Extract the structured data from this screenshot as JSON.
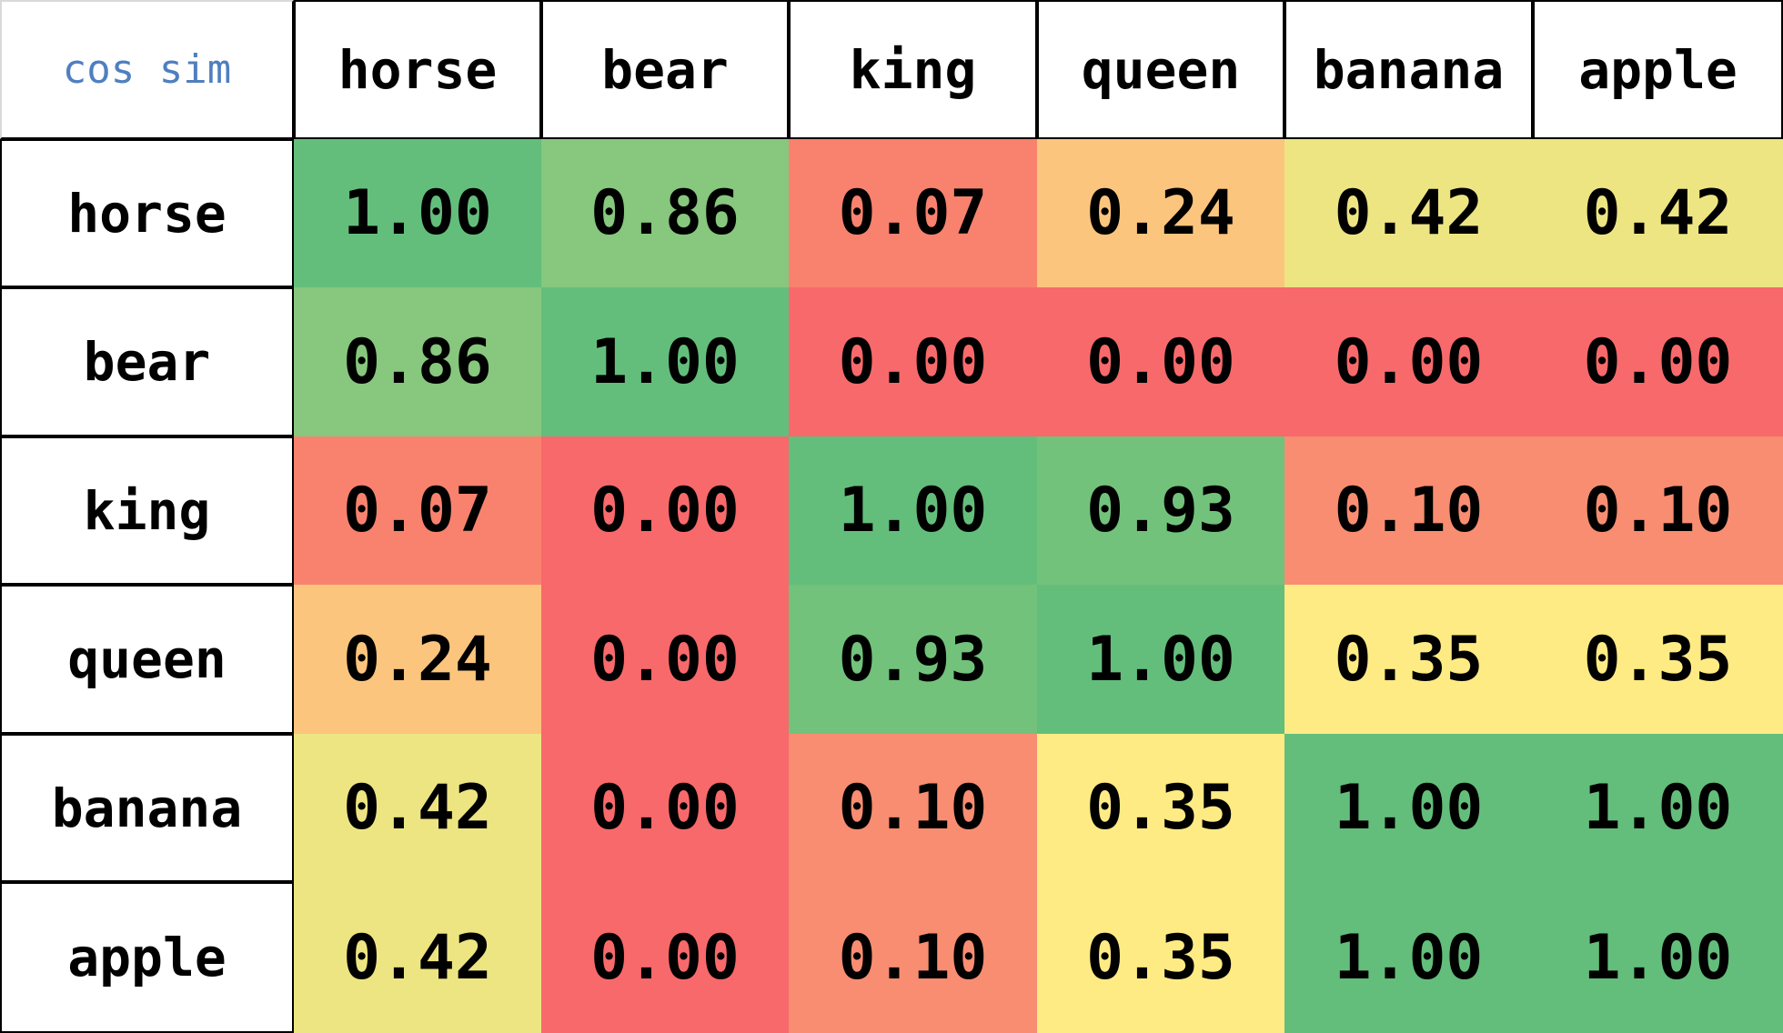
{
  "chart_data": {
    "type": "heatmap",
    "corner_label": "cos sim",
    "columns": [
      "horse",
      "bear",
      "king",
      "queen",
      "banana",
      "apple"
    ],
    "rows": [
      "horse",
      "bear",
      "king",
      "queen",
      "banana",
      "apple"
    ],
    "values": [
      [
        "1.00",
        "0.86",
        "0.07",
        "0.24",
        "0.42",
        "0.42"
      ],
      [
        "0.86",
        "1.00",
        "0.00",
        "0.00",
        "0.00",
        "0.00"
      ],
      [
        "0.07",
        "0.00",
        "1.00",
        "0.93",
        "0.10",
        "0.10"
      ],
      [
        "0.24",
        "0.00",
        "0.93",
        "1.00",
        "0.35",
        "0.35"
      ],
      [
        "0.42",
        "0.00",
        "0.10",
        "0.35",
        "1.00",
        "1.00"
      ],
      [
        "0.42",
        "0.00",
        "0.10",
        "0.35",
        "1.00",
        "1.00"
      ]
    ],
    "colors": [
      [
        "#63be7b",
        "#87c77e",
        "#f8826e",
        "#fcc57d",
        "#ede582",
        "#ede582"
      ],
      [
        "#87c77e",
        "#63be7b",
        "#f8696b",
        "#f8696b",
        "#f8696b",
        "#f8696b"
      ],
      [
        "#f8826e",
        "#f8696b",
        "#63be7b",
        "#72c27b",
        "#f88d71",
        "#f88d71"
      ],
      [
        "#fcc57d",
        "#f8696b",
        "#72c27b",
        "#63be7b",
        "#ffeb84",
        "#ffeb84"
      ],
      [
        "#ede582",
        "#f8696b",
        "#f88d71",
        "#ffeb84",
        "#63be7b",
        "#63be7b"
      ],
      [
        "#ede582",
        "#f8696b",
        "#f88d71",
        "#ffeb84",
        "#63be7b",
        "#63be7b"
      ]
    ],
    "color_scale": {
      "low": "#f8696b",
      "mid": "#ffeb84",
      "high": "#63be7b"
    }
  }
}
